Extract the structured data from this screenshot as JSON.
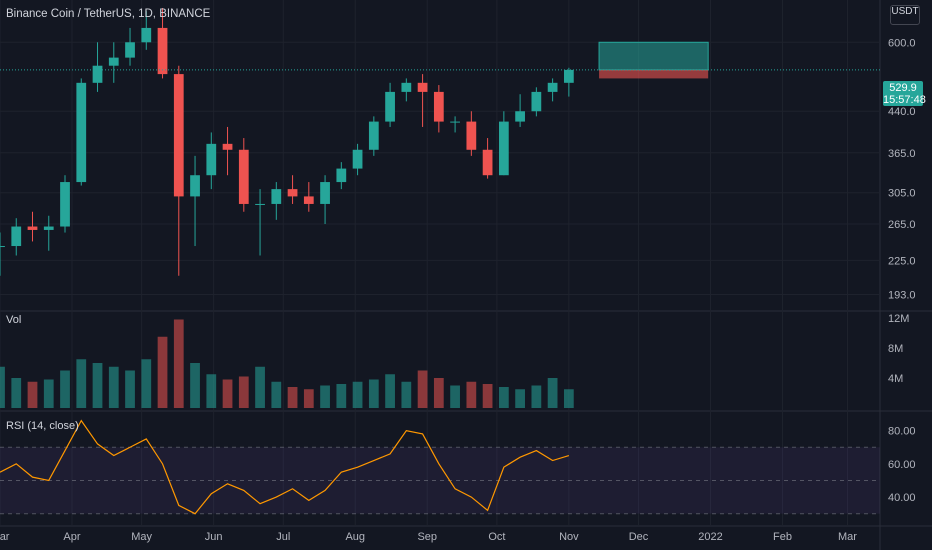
{
  "title": "Binance Coin / TetherUS, 1D, BINANCE",
  "currency": [
    "",
    "USDT"
  ],
  "current_price": "529.9",
  "countdown": "15:57:48",
  "panes": {
    "volume_label": "Vol",
    "rsi_label": "RSI (14, close)"
  },
  "colors": {
    "up": "#26a69a",
    "down": "#ef5350",
    "rsi_line": "#ff9800",
    "rsi_band": "#7e57c2",
    "bg": "#131722"
  },
  "chart_data": [
    {
      "type": "candlestick",
      "title": "Binance Coin / TetherUS, 1D, BINANCE",
      "y_scale": "log",
      "ylim": [
        180,
        700
      ],
      "y_ticks": [
        193.0,
        225.0,
        265.0,
        305.0,
        365.0,
        440.0,
        600.0
      ],
      "x_ticks": [
        "Mar",
        "Apr",
        "May",
        "Jun",
        "Jul",
        "Aug",
        "Sep",
        "Oct",
        "Nov",
        "Dec",
        "2022",
        "Feb",
        "Mar"
      ],
      "x_range": [
        "2021-03-01",
        "2022-03-15"
      ],
      "series": [
        {
          "x": [
            "2021-03-01",
            "2021-03-08",
            "2021-03-15",
            "2021-03-22",
            "2021-03-29",
            "2021-04-05",
            "2021-04-12",
            "2021-04-19",
            "2021-04-26",
            "2021-05-03",
            "2021-05-10",
            "2021-05-17",
            "2021-05-24",
            "2021-05-31",
            "2021-06-07",
            "2021-06-14",
            "2021-06-21",
            "2021-06-28",
            "2021-07-05",
            "2021-07-12",
            "2021-07-19",
            "2021-07-26",
            "2021-08-02",
            "2021-08-09",
            "2021-08-16",
            "2021-08-23",
            "2021-08-30",
            "2021-09-06",
            "2021-09-13",
            "2021-09-20",
            "2021-09-27",
            "2021-10-04",
            "2021-10-11",
            "2021-10-18",
            "2021-10-25",
            "2021-11-01"
          ],
          "open": [
            240,
            240,
            262,
            258,
            262,
            320,
            500,
            540,
            560,
            600,
            640,
            520,
            300,
            330,
            380,
            370,
            290,
            290,
            310,
            300,
            290,
            320,
            340,
            370,
            420,
            480,
            500,
            480,
            420,
            420,
            370,
            330,
            420,
            440,
            480,
            500
          ],
          "high": [
            255,
            272,
            280,
            275,
            330,
            510,
            600,
            600,
            640,
            690,
            700,
            540,
            360,
            400,
            410,
            390,
            310,
            320,
            330,
            320,
            330,
            350,
            380,
            430,
            500,
            510,
            520,
            495,
            430,
            440,
            390,
            440,
            475,
            490,
            510,
            535
          ],
          "low": [
            210,
            230,
            245,
            235,
            255,
            315,
            480,
            500,
            540,
            580,
            510,
            210,
            240,
            310,
            330,
            280,
            230,
            270,
            290,
            280,
            265,
            310,
            330,
            360,
            410,
            460,
            410,
            400,
            400,
            360,
            325,
            330,
            410,
            430,
            460,
            470
          ],
          "close": [
            240,
            262,
            258,
            262,
            320,
            500,
            540,
            560,
            600,
            640,
            520,
            300,
            330,
            380,
            370,
            290,
            290,
            310,
            300,
            290,
            320,
            340,
            370,
            420,
            480,
            500,
            480,
            420,
            420,
            370,
            330,
            420,
            440,
            480,
            500,
            529.9
          ]
        }
      ],
      "annotations": [
        {
          "type": "long-position",
          "target": 600,
          "entry": 529.9,
          "stop": 510,
          "x_start": "2021-11-14",
          "x_end": "2021-12-31"
        }
      ]
    },
    {
      "type": "bar",
      "title": "Vol",
      "y_ticks": [
        "4M",
        "8M",
        "12M"
      ],
      "ylim": [
        0,
        12
      ],
      "unit": "M",
      "x": [
        "2021-03-01",
        "2021-03-08",
        "2021-03-15",
        "2021-03-22",
        "2021-03-29",
        "2021-04-05",
        "2021-04-12",
        "2021-04-19",
        "2021-04-26",
        "2021-05-03",
        "2021-05-10",
        "2021-05-17",
        "2021-05-24",
        "2021-05-31",
        "2021-06-07",
        "2021-06-14",
        "2021-06-21",
        "2021-06-28",
        "2021-07-05",
        "2021-07-12",
        "2021-07-19",
        "2021-07-26",
        "2021-08-02",
        "2021-08-09",
        "2021-08-16",
        "2021-08-23",
        "2021-08-30",
        "2021-09-06",
        "2021-09-13",
        "2021-09-20",
        "2021-09-27",
        "2021-10-04",
        "2021-10-11",
        "2021-10-18",
        "2021-10-25",
        "2021-11-01"
      ],
      "values": [
        5.5,
        4.0,
        3.5,
        3.8,
        5.0,
        6.5,
        6.0,
        5.5,
        5.0,
        6.5,
        9.5,
        11.8,
        6.0,
        4.5,
        3.8,
        4.2,
        5.5,
        3.5,
        2.8,
        2.5,
        3.0,
        3.2,
        3.5,
        3.8,
        4.5,
        3.5,
        5.0,
        4.0,
        3.0,
        3.5,
        3.2,
        2.8,
        2.5,
        3.0,
        4.0,
        2.5
      ]
    },
    {
      "type": "line",
      "title": "RSI (14, close)",
      "y_ticks": [
        40.0,
        60.0,
        80.0
      ],
      "ylim": [
        25,
        90
      ],
      "levels": [
        30,
        50,
        70
      ],
      "x": [
        "2021-03-01",
        "2021-03-08",
        "2021-03-15",
        "2021-03-22",
        "2021-03-29",
        "2021-04-05",
        "2021-04-12",
        "2021-04-19",
        "2021-04-26",
        "2021-05-03",
        "2021-05-10",
        "2021-05-17",
        "2021-05-24",
        "2021-05-31",
        "2021-06-07",
        "2021-06-14",
        "2021-06-21",
        "2021-06-28",
        "2021-07-05",
        "2021-07-12",
        "2021-07-19",
        "2021-07-26",
        "2021-08-02",
        "2021-08-09",
        "2021-08-16",
        "2021-08-23",
        "2021-08-30",
        "2021-09-06",
        "2021-09-13",
        "2021-09-20",
        "2021-09-27",
        "2021-10-04",
        "2021-10-11",
        "2021-10-18",
        "2021-10-25",
        "2021-11-01"
      ],
      "values": [
        55,
        60,
        52,
        50,
        68,
        86,
        72,
        65,
        70,
        75,
        60,
        35,
        30,
        42,
        48,
        44,
        36,
        40,
        45,
        38,
        44,
        55,
        58,
        62,
        66,
        80,
        78,
        60,
        45,
        40,
        32,
        58,
        64,
        68,
        62,
        65
      ]
    }
  ]
}
